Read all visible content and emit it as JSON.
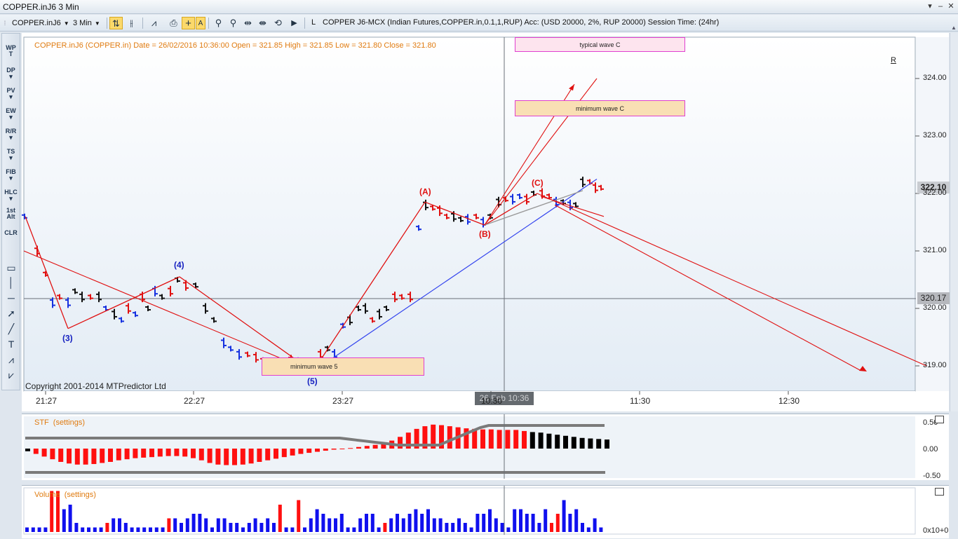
{
  "window": {
    "title": "COPPER.inJ6 3 Min",
    "minimize": "–",
    "restore": "▢",
    "close": "✕",
    "menu_arrow": "▾"
  },
  "toolbar": {
    "symbol_select": "COPPER.inJ6",
    "timeframe_select": "3 Min",
    "layer_label": "L",
    "info": "COPPER J6-MCX (Indian Futures,COPPER.in,0.1,1,RUP) Acc: (USD 20000, 2%, RUP 20000) Session Time: (24hr)"
  },
  "left_tools": [
    {
      "label": "WP\nT"
    },
    {
      "label": "DP\n▾"
    },
    {
      "label": "PV\n▾"
    },
    {
      "label": "EW\n▾"
    },
    {
      "label": "R/R\n▾"
    },
    {
      "label": "TS\n▾"
    },
    {
      "label": "FIB\n▾"
    },
    {
      "label": "HLC\n▾"
    },
    {
      "label": "1st\nAlt"
    },
    {
      "label": "CLR"
    }
  ],
  "chart": {
    "header": "COPPER.inJ6 (COPPER.in) Date = 26/02/2016 10:36:00 Open = 321.85 High = 321.85 Low = 321.80 Close = 321.80",
    "copyright": "Copyright 2001-2014 MTPredictor Ltd",
    "r_marker": "R",
    "current_price": "322.10",
    "crosshair_price": "320.17",
    "crosshair_time": "26 Feb 10:36",
    "box_typical": "typical wave C",
    "box_min_c": "minimum wave C",
    "box_min_5": "minimum wave 5",
    "labels": {
      "w3": "(3)",
      "w4": "(4)",
      "w5": "(5)",
      "wA": "(A)",
      "wB": "(B)",
      "wC": "(C)"
    },
    "colors": {
      "up_bar": "#e01010",
      "down_bar": "#111111",
      "blue_bar": "#1530e0",
      "wave_line": "#e01010",
      "trend_blue": "#3344ee",
      "header_text": "#e07b10"
    }
  },
  "chart_data": [
    {
      "type": "line",
      "title": "",
      "xlabel": "",
      "ylabel": "",
      "x_ticks": [
        "21:27",
        "22:27",
        "23:27",
        "10:30",
        "11:30",
        "12:30"
      ],
      "y_ticks": [
        "324.00",
        "323.00",
        "322.00",
        "321.00",
        "320.00",
        "319.00"
      ],
      "ylim": [
        318.8,
        324.7
      ],
      "grid": false,
      "series": [
        {
          "name": "",
          "points": [
            {
              "label": "(3)",
              "price": 319.65
            },
            {
              "label": "(4)",
              "price": 320.55
            },
            {
              "label": "(5)",
              "price": 318.9
            },
            {
              "label": "(A)",
              "price": 321.85
            },
            {
              "label": "(B)",
              "price": 321.45
            },
            {
              "label": "(C)",
              "price": 322.0
            }
          ]
        }
      ]
    },
    {
      "type": "bar",
      "title": "STF",
      "settings": "(settings)",
      "y_ticks": [
        "0.50",
        "0.00",
        "-0.50"
      ],
      "ylim": [
        -0.62,
        0.62
      ],
      "values": [
        -0.05,
        -0.1,
        -0.15,
        -0.2,
        -0.25,
        -0.28,
        -0.3,
        -0.3,
        -0.29,
        -0.27,
        -0.25,
        -0.22,
        -0.2,
        -0.18,
        -0.17,
        -0.16,
        -0.15,
        -0.14,
        -0.14,
        -0.15,
        -0.18,
        -0.22,
        -0.27,
        -0.3,
        -0.31,
        -0.31,
        -0.3,
        -0.28,
        -0.25,
        -0.22,
        -0.19,
        -0.16,
        -0.13,
        -0.1,
        -0.08,
        -0.06,
        -0.04,
        -0.02,
        -0.01,
        0.01,
        0.03,
        0.05,
        0.07,
        0.1,
        0.15,
        0.22,
        0.3,
        0.37,
        0.42,
        0.45,
        0.44,
        0.42,
        0.4,
        0.38,
        0.37,
        0.36,
        0.36,
        0.35,
        0.35,
        0.35,
        0.33,
        0.31,
        0.3,
        0.28,
        0.26,
        0.24,
        0.22,
        0.2,
        0.19,
        0.18,
        0.17
      ]
    },
    {
      "type": "bar",
      "title": "Volume",
      "settings": "(settings)",
      "y_ticks": [
        "0x10+0"
      ],
      "values": [
        1,
        1,
        1,
        1,
        9,
        9,
        5,
        6,
        2,
        1,
        1,
        1,
        1,
        2,
        3,
        3,
        2,
        1,
        1,
        1,
        1,
        1,
        1,
        3,
        3,
        2,
        3,
        4,
        4,
        3,
        1,
        3,
        3,
        2,
        2,
        1,
        2,
        3,
        2,
        3,
        2,
        6,
        1,
        1,
        7,
        1,
        3,
        5,
        4,
        3,
        3,
        4,
        1,
        1,
        3,
        4,
        4,
        1,
        2,
        3,
        4,
        3,
        4,
        5,
        4,
        5,
        3,
        3,
        2,
        2,
        3,
        2,
        1,
        4,
        4,
        5,
        3,
        2,
        1,
        5,
        5,
        4,
        4,
        2,
        5,
        2,
        4,
        7,
        4,
        5,
        2,
        1,
        3,
        1
      ]
    }
  ]
}
